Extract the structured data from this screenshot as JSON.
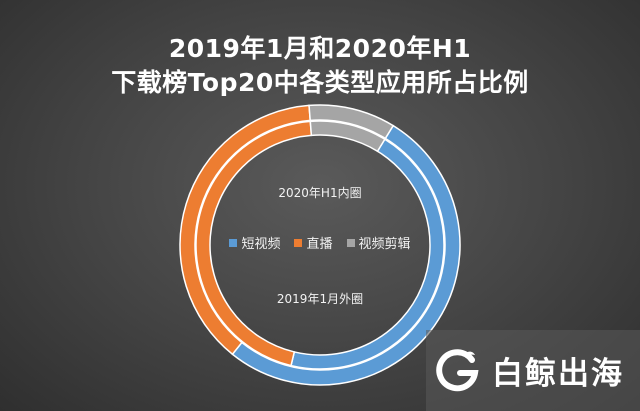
{
  "chart_data": {
    "type": "pie",
    "title_line1": "2019年1月和2020年H1",
    "title_line2": "下载榜Top20中各类型应用所占比例",
    "inner_label": "2020年H1内圈",
    "outer_label": "2019年1月外圈",
    "categories": [
      "短视频",
      "直播",
      "视频剪辑"
    ],
    "colors": [
      "#5b9bd5",
      "#ed7d31",
      "#a5a5a5"
    ],
    "series": [
      {
        "ring": "outer",
        "values": [
          52,
          38,
          10
        ]
      },
      {
        "ring": "inner",
        "values": [
          45,
          45,
          10
        ]
      }
    ],
    "legend_position": "center"
  },
  "watermark": {
    "text": "白鲸出海",
    "icon": "whale-g-logo-icon"
  }
}
